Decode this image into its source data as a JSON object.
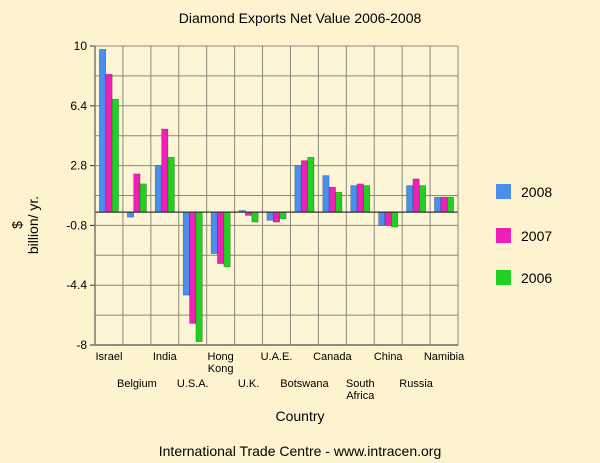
{
  "chart_data": {
    "type": "bar",
    "title": "Diamond Exports Net Value 2006-2008",
    "xlabel": "Country",
    "ylabel": "$ billion/ yr.",
    "ylim": [
      -8,
      10
    ],
    "yticks": [
      "10",
      "6.4",
      "2.8",
      "-0.8",
      "-4.4",
      "-8"
    ],
    "grid": true,
    "legend_position": "right",
    "categories": [
      "Israel",
      "Belgium",
      "India",
      "U.S.A.",
      "Hong Kong",
      "U.K.",
      "U.A.E.",
      "Botswana",
      "Canada",
      "South Africa",
      "China",
      "Russia",
      "Namibia"
    ],
    "series": [
      {
        "name": "2008",
        "color": "#4a8fef",
        "values": [
          9.8,
          -0.3,
          2.8,
          -5.0,
          -2.5,
          0.1,
          -0.5,
          2.8,
          2.2,
          1.6,
          -0.8,
          1.6,
          0.9
        ]
      },
      {
        "name": "2007",
        "color": "#ef20b8",
        "values": [
          8.3,
          2.3,
          5.0,
          -6.7,
          -3.1,
          -0.2,
          -0.6,
          3.1,
          1.5,
          1.7,
          -0.8,
          2.0,
          0.9
        ]
      },
      {
        "name": "2006",
        "color": "#1fd21f",
        "values": [
          6.8,
          1.7,
          3.3,
          -7.8,
          -3.3,
          -0.6,
          -0.4,
          3.3,
          1.2,
          1.6,
          -0.9,
          1.6,
          0.9
        ]
      }
    ]
  },
  "footer": "International Trade Centre -  www.intracen.org"
}
